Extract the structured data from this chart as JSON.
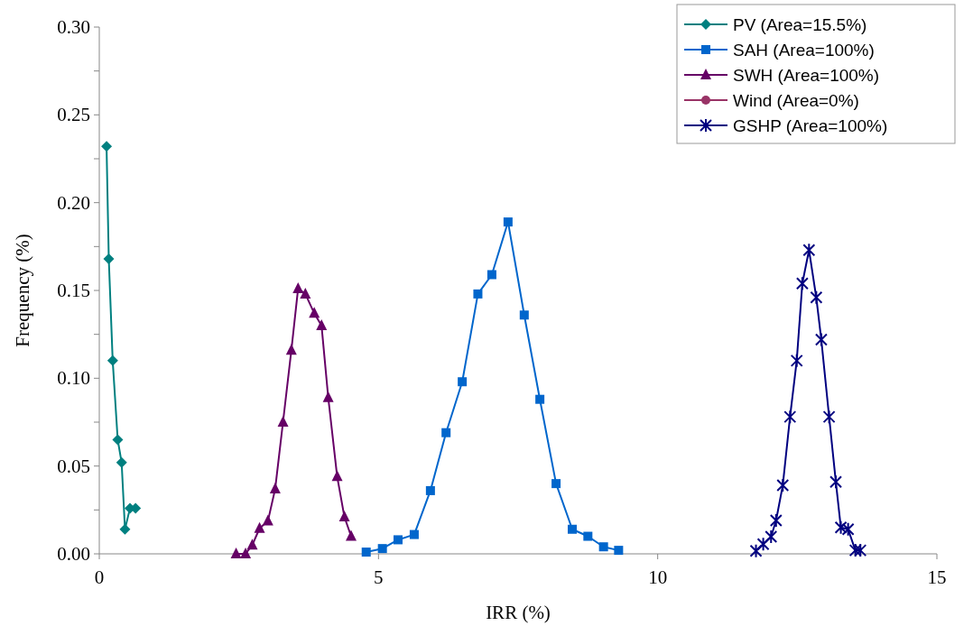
{
  "chart_data": {
    "type": "line",
    "xlabel": "IRR (%)",
    "ylabel": "Frequency (%)",
    "xlim": [
      0,
      15
    ],
    "xticks": [
      0,
      5,
      10,
      15
    ],
    "ylim": [
      0,
      0.3
    ],
    "yticks": [
      {
        "value": 0,
        "label": "0.00"
      },
      {
        "value": 0.025,
        "label": null
      },
      {
        "value": 0.05,
        "label": "0.05"
      },
      {
        "value": 0.075,
        "label": null
      },
      {
        "value": 0.1,
        "label": "0.10"
      },
      {
        "value": 0.125,
        "label": null
      },
      {
        "value": 0.15,
        "label": "0.15"
      },
      {
        "value": 0.175,
        "label": null
      },
      {
        "value": 0.2,
        "label": "0.20"
      },
      {
        "value": 0.225,
        "label": null
      },
      {
        "value": 0.25,
        "label": "0.25"
      },
      {
        "value": 0.275,
        "label": null
      },
      {
        "value": 0.3,
        "label": "0.30"
      }
    ],
    "grid": false,
    "legend": "top right",
    "line_style": "solid",
    "series": [
      {
        "name": "PV (Area=15.5%)",
        "color": "#008080",
        "marker": "diamond",
        "x": [
          0.13,
          0.17,
          0.24,
          0.33,
          0.4,
          0.46,
          0.55,
          0.65
        ],
        "values": [
          0.232,
          0.168,
          0.11,
          0.065,
          0.052,
          0.014,
          0.026,
          0.026
        ]
      },
      {
        "name": "SAH (Area=100%)",
        "color": "#0066cc",
        "marker": "square",
        "x": [
          4.78,
          5.07,
          5.35,
          5.64,
          5.93,
          6.21,
          6.5,
          6.78,
          7.03,
          7.32,
          7.61,
          7.89,
          8.18,
          8.47,
          8.75,
          9.03,
          9.3
        ],
        "values": [
          0.001,
          0.003,
          0.008,
          0.011,
          0.036,
          0.069,
          0.098,
          0.148,
          0.159,
          0.189,
          0.136,
          0.088,
          0.04,
          0.014,
          0.01,
          0.004,
          0.002
        ]
      },
      {
        "name": "SWH (Area=100%)",
        "color": "#660066",
        "marker": "triangle",
        "x": [
          2.45,
          2.62,
          2.74,
          2.87,
          3.02,
          3.15,
          3.29,
          3.44,
          3.56,
          3.69,
          3.85,
          3.98,
          4.1,
          4.26,
          4.39,
          4.51
        ],
        "values": [
          0,
          0,
          0.005,
          0.0145,
          0.0187,
          0.037,
          0.075,
          0.116,
          0.151,
          0.148,
          0.137,
          0.13,
          0.089,
          0.044,
          0.021,
          0.01
        ]
      },
      {
        "name": "Wind (Area=0%)",
        "color": "#993366",
        "marker": "circle"
      },
      {
        "name": "GSHP (Area=100%)",
        "color": "#000080",
        "marker": "cross",
        "x": [
          11.76,
          11.89,
          12.03,
          12.12,
          12.24,
          12.37,
          12.49,
          12.59,
          12.71,
          12.84,
          12.93,
          13.07,
          13.19,
          13.28,
          13.41,
          13.54,
          13.63
        ],
        "values": [
          0.0017,
          0.0055,
          0.0098,
          0.019,
          0.039,
          0.078,
          0.11,
          0.154,
          0.173,
          0.146,
          0.122,
          0.078,
          0.041,
          0.015,
          0.014,
          0.002,
          0.002
        ]
      }
    ]
  }
}
